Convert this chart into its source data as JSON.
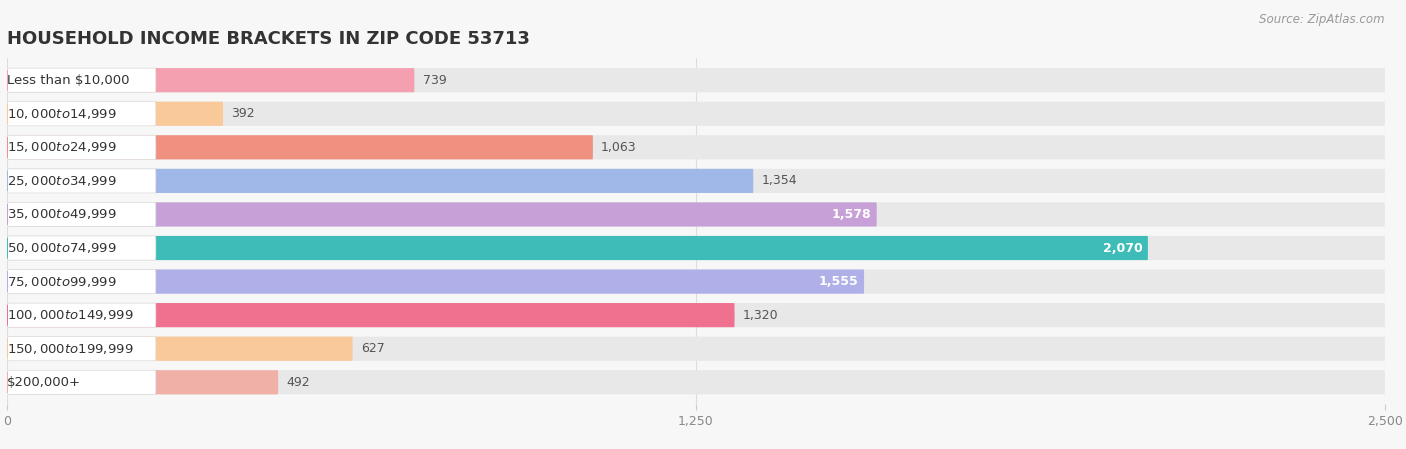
{
  "title": "HOUSEHOLD INCOME BRACKETS IN ZIP CODE 53713",
  "source": "Source: ZipAtlas.com",
  "categories": [
    "Less than $10,000",
    "$10,000 to $14,999",
    "$15,000 to $24,999",
    "$25,000 to $34,999",
    "$35,000 to $49,999",
    "$50,000 to $74,999",
    "$75,000 to $99,999",
    "$100,000 to $149,999",
    "$150,000 to $199,999",
    "$200,000+"
  ],
  "values": [
    739,
    392,
    1063,
    1354,
    1578,
    2070,
    1555,
    1320,
    627,
    492
  ],
  "bar_colors": [
    "#f4a0b0",
    "#f9c99a",
    "#f09080",
    "#a0b8e8",
    "#c8a0d8",
    "#3dbcb8",
    "#b0b0e8",
    "#f07090",
    "#f9c99a",
    "#f0b0a8"
  ],
  "background_color": "#f7f7f7",
  "bar_bg_color": "#e8e8e8",
  "label_bg_color": "#ffffff",
  "xlim": [
    0,
    2500
  ],
  "xticks": [
    0,
    1250,
    2500
  ],
  "title_fontsize": 13,
  "label_fontsize": 9.5,
  "value_fontsize": 9,
  "bar_height": 0.72,
  "value_threshold_inside": 1500
}
